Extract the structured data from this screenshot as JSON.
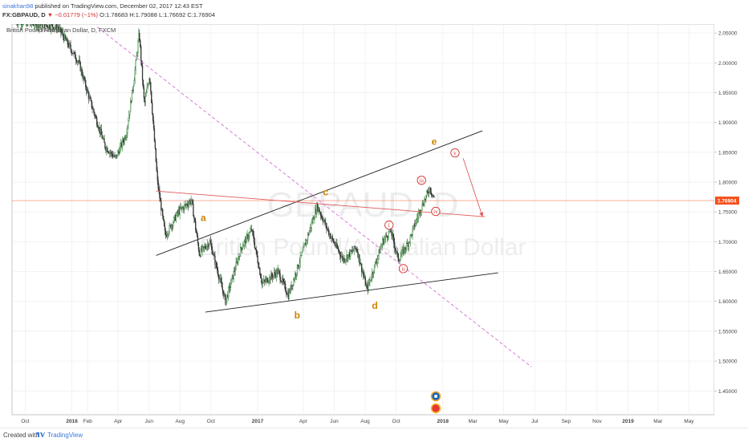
{
  "header": {
    "author": "sinakhan98",
    "published_text": "published on TradingView.com, December 02, 2017 12:43 EST",
    "symbol": "FX:GBPAUD, D",
    "arrow": "▼",
    "change": "−0.01779 (−1%)",
    "ohlc": "O:1.78683 H:1.79088 L:1.76692 C:1.76904"
  },
  "chart_data": {
    "type": "candlestick",
    "instrument_label": "British Pound/Australian Dollar, D, FXCM",
    "watermark_symbol": "GBPAUD, D",
    "watermark_name": "British Pound/Australian Dollar",
    "x_ticks": [
      "Oct",
      "2016",
      "Feb",
      "Apr",
      "Jun",
      "Aug",
      "Oct",
      "2017",
      "Apr",
      "Jun",
      "Aug",
      "Oct",
      "2018",
      "Mar",
      "May",
      "Jul",
      "Sep",
      "Nov",
      "2019",
      "Mar",
      "May"
    ],
    "y_ticks": [
      "2.05000",
      "2.00000",
      "1.95000",
      "1.90000",
      "1.85000",
      "1.80000",
      "1.75000",
      "1.70000",
      "1.65000",
      "1.60000",
      "1.55000",
      "1.50000",
      "1.45000"
    ],
    "y_range": [
      1.41,
      2.065
    ],
    "last_price": "1.76904",
    "last_price_value": 1.76904,
    "price_path": [
      {
        "t": 0.0,
        "p": 2.07
      },
      {
        "t": 0.08,
        "p": 2.06
      },
      {
        "t": 0.12,
        "p": 2.0
      },
      {
        "t": 0.14,
        "p": 1.94
      },
      {
        "t": 0.17,
        "p": 1.86
      },
      {
        "t": 0.19,
        "p": 1.84
      },
      {
        "t": 0.21,
        "p": 1.88
      },
      {
        "t": 0.225,
        "p": 1.97
      },
      {
        "t": 0.235,
        "p": 2.05
      },
      {
        "t": 0.245,
        "p": 1.93
      },
      {
        "t": 0.255,
        "p": 1.98
      },
      {
        "t": 0.27,
        "p": 1.8
      },
      {
        "t": 0.285,
        "p": 1.71
      },
      {
        "t": 0.31,
        "p": 1.75
      },
      {
        "t": 0.335,
        "p": 1.77
      },
      {
        "t": 0.35,
        "p": 1.68
      },
      {
        "t": 0.37,
        "p": 1.7
      },
      {
        "t": 0.4,
        "p": 1.6
      },
      {
        "t": 0.43,
        "p": 1.69
      },
      {
        "t": 0.45,
        "p": 1.72
      },
      {
        "t": 0.47,
        "p": 1.63
      },
      {
        "t": 0.5,
        "p": 1.65
      },
      {
        "t": 0.52,
        "p": 1.61
      },
      {
        "t": 0.55,
        "p": 1.69
      },
      {
        "t": 0.575,
        "p": 1.76
      },
      {
        "t": 0.6,
        "p": 1.71
      },
      {
        "t": 0.625,
        "p": 1.67
      },
      {
        "t": 0.65,
        "p": 1.69
      },
      {
        "t": 0.67,
        "p": 1.62
      },
      {
        "t": 0.7,
        "p": 1.7
      },
      {
        "t": 0.715,
        "p": 1.72
      },
      {
        "t": 0.73,
        "p": 1.67
      },
      {
        "t": 0.75,
        "p": 1.7
      },
      {
        "t": 0.77,
        "p": 1.75
      },
      {
        "t": 0.79,
        "p": 1.79
      },
      {
        "t": 0.8,
        "p": 1.77
      }
    ],
    "wave_labels": [
      {
        "text": "a",
        "date": "2016-09-16",
        "price": 1.74,
        "style": "orange"
      },
      {
        "text": "b",
        "date": "2017-03-20",
        "price": 1.577,
        "style": "orange"
      },
      {
        "text": "c",
        "date": "2017-05-15",
        "price": 1.783,
        "style": "orange"
      },
      {
        "text": "d",
        "date": "2017-08-20",
        "price": 1.593,
        "style": "orange"
      },
      {
        "text": "e",
        "date": "2017-12-15",
        "price": 1.868,
        "style": "orange"
      },
      {
        "text": "i",
        "date": "2017-09-17",
        "price": 1.728,
        "style": "circle"
      },
      {
        "text": "ii",
        "date": "2017-10-15",
        "price": 1.655,
        "style": "circle"
      },
      {
        "text": "iii",
        "date": "2017-11-20",
        "price": 1.803,
        "style": "circle"
      },
      {
        "text": "iv",
        "date": "2017-12-18",
        "price": 1.751,
        "style": "circle"
      },
      {
        "text": "v",
        "date": "2018-01-25",
        "price": 1.849,
        "style": "circle"
      }
    ],
    "trendlines": [
      {
        "name": "upper-channel",
        "from": [
          "2016-06-15",
          1.677
        ],
        "to": [
          "2018-03-20",
          1.886
        ],
        "color": "#222222",
        "dashed": false
      },
      {
        "name": "lower-channel",
        "from": [
          "2016-09-20",
          1.582
        ],
        "to": [
          "2018-04-20",
          1.648
        ],
        "color": "#222222",
        "dashed": false
      },
      {
        "name": "wave-e-to-d-line",
        "from": [
          "2016-06-15",
          1.785
        ],
        "to": [
          "2018-03-25",
          1.742
        ],
        "color": "#e05a5a",
        "dashed": false
      },
      {
        "name": "dashed-resistance",
        "from": [
          "2016-02-20",
          2.06
        ],
        "to": [
          "2018-06-25",
          1.49
        ],
        "color": "#d97ad9",
        "dashed": true
      },
      {
        "name": "projection-arrow",
        "from": [
          "2018-02-10",
          1.84
        ],
        "to": [
          "2018-03-20",
          1.743
        ],
        "color": "#e05a5a",
        "dashed": false
      }
    ],
    "grid": true,
    "colors": {
      "up": "#2e7d32",
      "down": "#d32f2f",
      "candle_dark": "#333333",
      "last_price": "#f4511e",
      "wave_orange": "#cc8400",
      "wave_circle": "#d32f2f",
      "dashed": "#d97ad9"
    }
  },
  "footer": {
    "created": "Created with",
    "brand": "TradingView"
  }
}
